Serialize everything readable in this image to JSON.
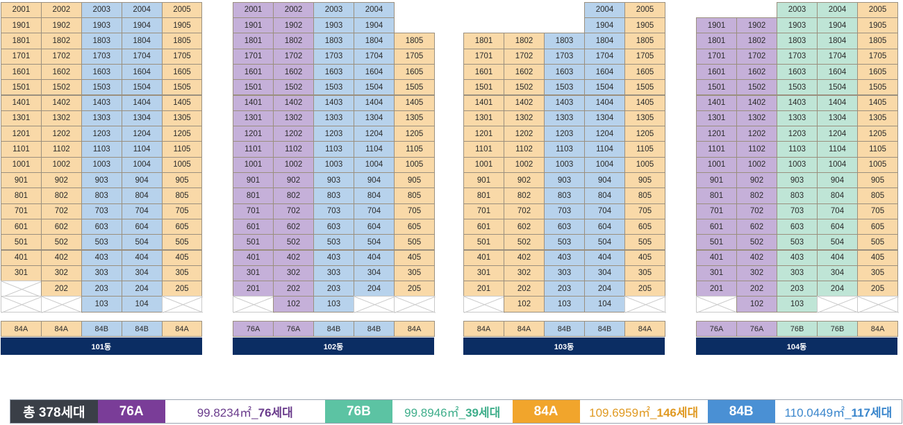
{
  "colors": {
    "76A": "#c5b0d9",
    "76B": "#bfe5d6",
    "84A": "#f9d9a8",
    "84B": "#b7d2ec",
    "name_bar": "#0b2d63",
    "empty_line": "#c9c9c9"
  },
  "buildings": [
    {
      "name": "101동",
      "unit_types": [
        "84A",
        "84A",
        "84B",
        "84B",
        "84A"
      ],
      "floors": [
        {
          "floor": 20,
          "units": [
            "2001",
            "2002",
            "2003",
            "2004",
            "2005"
          ]
        },
        {
          "floor": 19,
          "units": [
            "1901",
            "1902",
            "1903",
            "1904",
            "1905"
          ]
        },
        {
          "floor": 18,
          "units": [
            "1801",
            "1802",
            "1803",
            "1804",
            "1805"
          ]
        },
        {
          "floor": 17,
          "units": [
            "1701",
            "1702",
            "1703",
            "1704",
            "1705"
          ]
        },
        {
          "floor": 16,
          "units": [
            "1601",
            "1602",
            "1603",
            "1604",
            "1605"
          ]
        },
        {
          "floor": 15,
          "units": [
            "1501",
            "1502",
            "1503",
            "1504",
            "1505"
          ]
        },
        {
          "floor": 14,
          "units": [
            "1401",
            "1402",
            "1403",
            "1404",
            "1405"
          ]
        },
        {
          "floor": 13,
          "units": [
            "1301",
            "1302",
            "1303",
            "1304",
            "1305"
          ]
        },
        {
          "floor": 12,
          "units": [
            "1201",
            "1202",
            "1203",
            "1204",
            "1205"
          ]
        },
        {
          "floor": 11,
          "units": [
            "1101",
            "1102",
            "1103",
            "1104",
            "1105"
          ]
        },
        {
          "floor": 10,
          "units": [
            "1001",
            "1002",
            "1003",
            "1004",
            "1005"
          ]
        },
        {
          "floor": 9,
          "units": [
            "901",
            "902",
            "903",
            "904",
            "905"
          ]
        },
        {
          "floor": 8,
          "units": [
            "801",
            "802",
            "803",
            "804",
            "805"
          ]
        },
        {
          "floor": 7,
          "units": [
            "701",
            "702",
            "703",
            "704",
            "705"
          ]
        },
        {
          "floor": 6,
          "units": [
            "601",
            "602",
            "603",
            "604",
            "605"
          ]
        },
        {
          "floor": 5,
          "units": [
            "501",
            "502",
            "503",
            "504",
            "505"
          ]
        },
        {
          "floor": 4,
          "units": [
            "401",
            "402",
            "403",
            "404",
            "405"
          ]
        },
        {
          "floor": 3,
          "units": [
            "301",
            "302",
            "303",
            "304",
            "305"
          ]
        },
        {
          "floor": 2,
          "units": [
            "X",
            "202",
            "203",
            "204",
            "205"
          ]
        },
        {
          "floor": 1,
          "units": [
            "X",
            "X",
            "103",
            "104",
            "X"
          ]
        }
      ]
    },
    {
      "name": "102동",
      "unit_types": [
        "76A",
        "76A",
        "84B",
        "84B",
        "84A"
      ],
      "floors": [
        {
          "floor": 20,
          "units": [
            "2001",
            "2002",
            "2003",
            "2004",
            null
          ]
        },
        {
          "floor": 19,
          "units": [
            "1901",
            "1902",
            "1903",
            "1904",
            null
          ]
        },
        {
          "floor": 18,
          "units": [
            "1801",
            "1802",
            "1803",
            "1804",
            "1805"
          ]
        },
        {
          "floor": 17,
          "units": [
            "1701",
            "1702",
            "1703",
            "1704",
            "1705"
          ]
        },
        {
          "floor": 16,
          "units": [
            "1601",
            "1602",
            "1603",
            "1604",
            "1605"
          ]
        },
        {
          "floor": 15,
          "units": [
            "1501",
            "1502",
            "1503",
            "1504",
            "1505"
          ]
        },
        {
          "floor": 14,
          "units": [
            "1401",
            "1402",
            "1403",
            "1404",
            "1405"
          ]
        },
        {
          "floor": 13,
          "units": [
            "1301",
            "1302",
            "1303",
            "1304",
            "1305"
          ]
        },
        {
          "floor": 12,
          "units": [
            "1201",
            "1202",
            "1203",
            "1204",
            "1205"
          ]
        },
        {
          "floor": 11,
          "units": [
            "1101",
            "1102",
            "1103",
            "1104",
            "1105"
          ]
        },
        {
          "floor": 10,
          "units": [
            "1001",
            "1002",
            "1003",
            "1004",
            "1005"
          ]
        },
        {
          "floor": 9,
          "units": [
            "901",
            "902",
            "903",
            "904",
            "905"
          ]
        },
        {
          "floor": 8,
          "units": [
            "801",
            "802",
            "803",
            "804",
            "805"
          ]
        },
        {
          "floor": 7,
          "units": [
            "701",
            "702",
            "703",
            "704",
            "705"
          ]
        },
        {
          "floor": 6,
          "units": [
            "601",
            "602",
            "603",
            "604",
            "605"
          ]
        },
        {
          "floor": 5,
          "units": [
            "501",
            "502",
            "503",
            "504",
            "505"
          ]
        },
        {
          "floor": 4,
          "units": [
            "401",
            "402",
            "403",
            "404",
            "405"
          ]
        },
        {
          "floor": 3,
          "units": [
            "301",
            "302",
            "303",
            "304",
            "305"
          ]
        },
        {
          "floor": 2,
          "units": [
            "201",
            "202",
            "203",
            "204",
            "205"
          ]
        },
        {
          "floor": 1,
          "units": [
            "X",
            "102",
            "103",
            "X",
            "X"
          ]
        }
      ]
    },
    {
      "name": "103동",
      "unit_types": [
        "84A",
        "84A",
        "84B",
        "84B",
        "84A"
      ],
      "floors": [
        {
          "floor": 20,
          "units": [
            null,
            null,
            null,
            "2004",
            "2005"
          ]
        },
        {
          "floor": 19,
          "units": [
            null,
            null,
            null,
            "1904",
            "1905"
          ]
        },
        {
          "floor": 18,
          "units": [
            "1801",
            "1802",
            "1803",
            "1804",
            "1805"
          ]
        },
        {
          "floor": 17,
          "units": [
            "1701",
            "1702",
            "1703",
            "1704",
            "1705"
          ]
        },
        {
          "floor": 16,
          "units": [
            "1601",
            "1602",
            "1603",
            "1604",
            "1605"
          ]
        },
        {
          "floor": 15,
          "units": [
            "1501",
            "1502",
            "1503",
            "1504",
            "1505"
          ]
        },
        {
          "floor": 14,
          "units": [
            "1401",
            "1402",
            "1403",
            "1404",
            "1405"
          ]
        },
        {
          "floor": 13,
          "units": [
            "1301",
            "1302",
            "1303",
            "1304",
            "1305"
          ]
        },
        {
          "floor": 12,
          "units": [
            "1201",
            "1202",
            "1203",
            "1204",
            "1205"
          ]
        },
        {
          "floor": 11,
          "units": [
            "1101",
            "1102",
            "1103",
            "1104",
            "1105"
          ]
        },
        {
          "floor": 10,
          "units": [
            "1001",
            "1002",
            "1003",
            "1004",
            "1005"
          ]
        },
        {
          "floor": 9,
          "units": [
            "901",
            "902",
            "903",
            "904",
            "905"
          ]
        },
        {
          "floor": 8,
          "units": [
            "801",
            "802",
            "803",
            "804",
            "805"
          ]
        },
        {
          "floor": 7,
          "units": [
            "701",
            "702",
            "703",
            "704",
            "705"
          ]
        },
        {
          "floor": 6,
          "units": [
            "601",
            "602",
            "603",
            "604",
            "605"
          ]
        },
        {
          "floor": 5,
          "units": [
            "501",
            "502",
            "503",
            "504",
            "505"
          ]
        },
        {
          "floor": 4,
          "units": [
            "401",
            "402",
            "403",
            "404",
            "405"
          ]
        },
        {
          "floor": 3,
          "units": [
            "301",
            "302",
            "303",
            "304",
            "305"
          ]
        },
        {
          "floor": 2,
          "units": [
            "201",
            "202",
            "203",
            "204",
            "205"
          ]
        },
        {
          "floor": 1,
          "units": [
            "X",
            "102",
            "103",
            "104",
            "X"
          ]
        }
      ]
    },
    {
      "name": "104동",
      "unit_types": [
        "76A",
        "76A",
        "76B",
        "76B",
        "84A"
      ],
      "floors": [
        {
          "floor": 20,
          "units": [
            null,
            null,
            "2003",
            "2004",
            "2005"
          ]
        },
        {
          "floor": 19,
          "units": [
            "1901",
            "1902",
            "1903",
            "1904",
            "1905"
          ]
        },
        {
          "floor": 18,
          "units": [
            "1801",
            "1802",
            "1803",
            "1804",
            "1805"
          ]
        },
        {
          "floor": 17,
          "units": [
            "1701",
            "1702",
            "1703",
            "1704",
            "1705"
          ]
        },
        {
          "floor": 16,
          "units": [
            "1601",
            "1602",
            "1603",
            "1604",
            "1605"
          ]
        },
        {
          "floor": 15,
          "units": [
            "1501",
            "1502",
            "1503",
            "1504",
            "1505"
          ]
        },
        {
          "floor": 14,
          "units": [
            "1401",
            "1402",
            "1403",
            "1404",
            "1405"
          ]
        },
        {
          "floor": 13,
          "units": [
            "1301",
            "1302",
            "1303",
            "1304",
            "1305"
          ]
        },
        {
          "floor": 12,
          "units": [
            "1201",
            "1202",
            "1203",
            "1204",
            "1205"
          ]
        },
        {
          "floor": 11,
          "units": [
            "1101",
            "1102",
            "1103",
            "1104",
            "1105"
          ]
        },
        {
          "floor": 10,
          "units": [
            "1001",
            "1002",
            "1003",
            "1004",
            "1005"
          ]
        },
        {
          "floor": 9,
          "units": [
            "901",
            "902",
            "903",
            "904",
            "905"
          ]
        },
        {
          "floor": 8,
          "units": [
            "801",
            "802",
            "803",
            "804",
            "805"
          ]
        },
        {
          "floor": 7,
          "units": [
            "701",
            "702",
            "703",
            "704",
            "705"
          ]
        },
        {
          "floor": 6,
          "units": [
            "601",
            "602",
            "603",
            "604",
            "605"
          ]
        },
        {
          "floor": 5,
          "units": [
            "501",
            "502",
            "503",
            "504",
            "505"
          ]
        },
        {
          "floor": 4,
          "units": [
            "401",
            "402",
            "403",
            "404",
            "405"
          ]
        },
        {
          "floor": 3,
          "units": [
            "301",
            "302",
            "303",
            "304",
            "305"
          ]
        },
        {
          "floor": 2,
          "units": [
            "201",
            "202",
            "203",
            "204",
            "205"
          ]
        },
        {
          "floor": 1,
          "units": [
            "X",
            "102",
            "103",
            "X",
            "X"
          ]
        }
      ]
    }
  ],
  "legend": {
    "total": "총 378세대",
    "items": [
      {
        "type": "76A",
        "area": "99.8234㎡_",
        "count": "76세대",
        "badge_color": "#7a3d98",
        "text_color": "#6a3c8c"
      },
      {
        "type": "76B",
        "area": "99.8946㎡_",
        "count": "39세대",
        "badge_color": "#5cc3a3",
        "text_color": "#3fae8b"
      },
      {
        "type": "84A",
        "area": "109.6959㎡_",
        "count": "146세대",
        "badge_color": "#f1a52c",
        "text_color": "#e09a23"
      },
      {
        "type": "84B",
        "area": "110.0449㎡_",
        "count": "117세대",
        "badge_color": "#4a90d4",
        "text_color": "#3a86cc"
      }
    ],
    "total_color": "#3a3f47"
  }
}
